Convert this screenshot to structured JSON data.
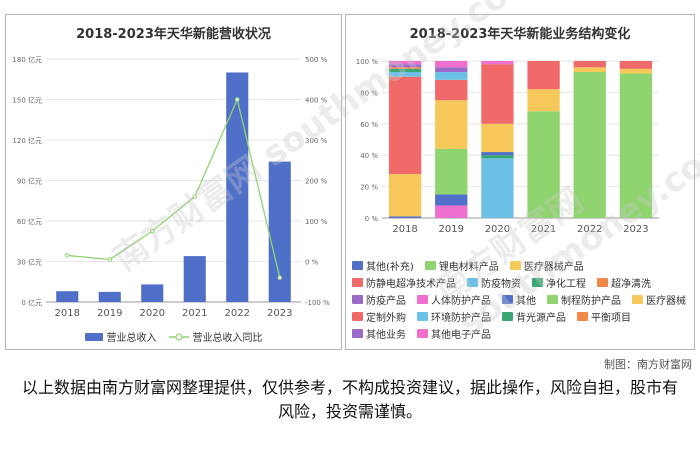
{
  "left_chart": {
    "title": "2018-2023年天华新能营收状况",
    "legend": {
      "bar": "营业总收入",
      "line": "营业总收入同比"
    },
    "y_left_ticks": [
      "0 亿元",
      "30 亿元",
      "60 亿元",
      "90 亿元",
      "120 亿元",
      "150 亿元",
      "180 亿元"
    ],
    "y_right_ticks": [
      "-100 %",
      "0 %",
      "100 %",
      "200 %",
      "300 %",
      "400 %",
      "500 %"
    ],
    "colors": {
      "bar": "#4f6fc9",
      "line": "#8fd46e"
    }
  },
  "right_chart": {
    "title": "2018-2023年天华新能业务结构变化",
    "y_ticks": [
      "0 %",
      "20 %",
      "40 %",
      "60 %",
      "80 %",
      "100 %"
    ]
  },
  "chart_data": [
    {
      "type": "bar",
      "title": "2018-2023年天华新能营收状况",
      "categories": [
        "2018",
        "2019",
        "2020",
        "2021",
        "2022",
        "2023"
      ],
      "series": [
        {
          "name": "营业总收入",
          "type": "bar",
          "axis": "left",
          "values": [
            8,
            7.5,
            13,
            34,
            170,
            104
          ]
        },
        {
          "name": "营业总收入同比",
          "type": "line",
          "axis": "right",
          "values": [
            15,
            5,
            75,
            160,
            400,
            -40
          ]
        }
      ],
      "ylim": [
        0,
        180
      ],
      "y2lim": [
        -100,
        500
      ]
    },
    {
      "type": "bar",
      "stacked": true,
      "title": "2018-2023年天华新能业务结构变化",
      "categories": [
        "2018",
        "2019",
        "2020",
        "2021",
        "2022",
        "2023"
      ],
      "ylim": [
        0,
        100
      ],
      "series": [
        {
          "name": "其他(补充)",
          "color": "#4f6fc9",
          "values": [
            0,
            0,
            0,
            0,
            0,
            0
          ]
        },
        {
          "name": "锂电材料产品",
          "color": "#8fd46e",
          "values": [
            0,
            0,
            0,
            68,
            93,
            92
          ]
        },
        {
          "name": "医疗器械产品",
          "color": "#f7c85a",
          "values": [
            0,
            0,
            0,
            14,
            3,
            3
          ]
        },
        {
          "name": "防静电超净技术产品",
          "color": "#f06a6a",
          "values": [
            0,
            0,
            0,
            18,
            4,
            5
          ]
        },
        {
          "name": "防疫物资",
          "color": "#6cc0e5",
          "values": [
            0,
            0,
            38,
            0,
            0,
            0
          ]
        },
        {
          "name": "净化工程",
          "color": "#39a774",
          "values": [
            0,
            0,
            2,
            0,
            0,
            0
          ]
        },
        {
          "name": "超净清洗",
          "color": "#f08848",
          "values": [
            0,
            0,
            0,
            0,
            0,
            0
          ]
        },
        {
          "name": "防疫产品",
          "color": "#9b6ac9",
          "values": [
            0,
            0,
            0,
            0,
            0,
            0
          ]
        },
        {
          "name": "人体防护产品",
          "color": "#ef6fcf",
          "values": [
            0,
            8,
            0,
            0,
            0,
            0
          ]
        },
        {
          "name": "其他",
          "color": "#4f6fc9",
          "values": [
            1,
            7,
            2,
            0,
            0,
            0
          ]
        },
        {
          "name": "制程防护产品",
          "color": "#8fd46e",
          "values": [
            0,
            29,
            0,
            0,
            0,
            0
          ]
        },
        {
          "name": "医疗器械",
          "color": "#f7c85a",
          "values": [
            27,
            31,
            18,
            0,
            0,
            0
          ]
        },
        {
          "name": "定制外购",
          "color": "#f06a6a",
          "values": [
            62,
            13,
            38,
            0,
            0,
            0
          ]
        },
        {
          "name": "环境防护产品",
          "color": "#6cc0e5",
          "values": [
            3,
            5,
            0,
            0,
            0,
            0
          ]
        },
        {
          "name": "背光源产品",
          "color": "#39a774",
          "values": [
            2,
            0,
            0,
            0,
            0,
            0
          ]
        },
        {
          "name": "平衡项目",
          "color": "#f08848",
          "values": [
            1,
            0,
            0,
            0,
            0,
            0
          ]
        },
        {
          "name": "其他业务",
          "color": "#9b6ac9",
          "values": [
            2,
            3,
            0,
            0,
            0,
            0
          ]
        },
        {
          "name": "其他电子产品",
          "color": "#ef6fcf",
          "values": [
            2,
            4,
            2,
            0,
            0,
            0
          ]
        }
      ]
    }
  ],
  "credit": "制图：南方财富网",
  "disclaimer": "以上数据由南方财富网整理提供，仅供参考，不构成投资建议，据此操作，风险自担，股市有风险，投资需谨慎。",
  "watermark": "南方财富网 southmoney.com"
}
